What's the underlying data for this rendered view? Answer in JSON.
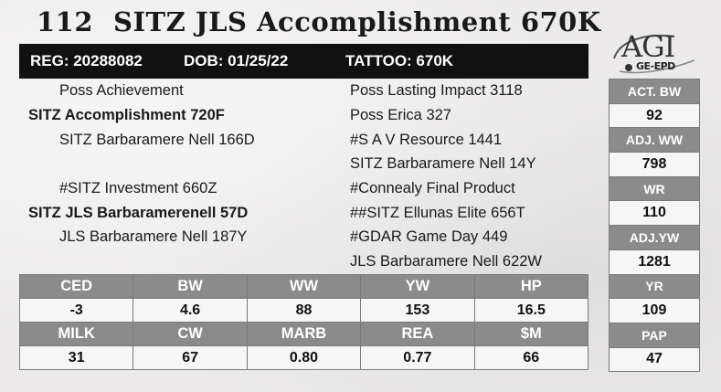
{
  "lot": "112",
  "animal_name": "SITZ JLS Accomplishment 670K",
  "reg": "REG: 20288082",
  "dob": "DOB: 01/25/22",
  "tattoo": "TATTOO: 670K",
  "logo": {
    "text": "AGI",
    "subtext": "GE-EPD"
  },
  "pedigree": {
    "left": [
      "Poss Achievement",
      "SITZ Accomplishment 720F",
      "SITZ Barbaramere Nell 166D",
      "#SITZ Investment 660Z",
      "SITZ JLS Barbaramerenell 57D",
      "JLS Barbaramere Nell 187Y"
    ],
    "right": [
      "Poss Lasting Impact 3118",
      "Poss Erica 327",
      "#S A V Resource 1441",
      "SITZ Barbaramere Nell 14Y",
      "#Connealy Final Product",
      "##SITZ Ellunas Elite 656T",
      "#GDAR Game Day 449",
      "JLS Barbaramere Nell 622W"
    ]
  },
  "epds": {
    "row1_headers": [
      "CED",
      "BW",
      "WW",
      "YW",
      "HP"
    ],
    "row1_values": [
      "-3",
      "4.6",
      "88",
      "153",
      "16.5"
    ],
    "row2_headers": [
      "MILK",
      "CW",
      "MARB",
      "REA",
      "$M"
    ],
    "row2_values": [
      "31",
      "67",
      "0.80",
      "0.77",
      "66"
    ]
  },
  "side_stats": [
    {
      "label": "ACT. BW",
      "value": "92"
    },
    {
      "label": "ADJ. WW",
      "value": "798"
    },
    {
      "label": "WR",
      "value": "110"
    },
    {
      "label": "ADJ.YW",
      "value": "1281"
    },
    {
      "label": "YR",
      "value": "109"
    },
    {
      "label": "PAP",
      "value": "47"
    }
  ]
}
